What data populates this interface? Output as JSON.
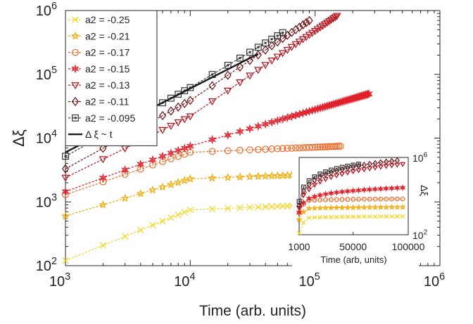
{
  "chart_data": [
    {
      "type": "line",
      "xlabel": "Time (arb. units)",
      "ylabel": "Δξ",
      "xscale": "log",
      "yscale": "log",
      "xlim": [
        1000,
        1000000
      ],
      "ylim": [
        100,
        1000000
      ],
      "x_ticks": [
        {
          "value": 1000,
          "base": "10",
          "exp": "3"
        },
        {
          "value": 10000,
          "base": "10",
          "exp": "4"
        },
        {
          "value": 100000,
          "base": "10",
          "exp": "5"
        },
        {
          "value": 1000000,
          "base": "10",
          "exp": "6"
        }
      ],
      "y_ticks": [
        {
          "value": 100,
          "base": "10",
          "exp": "2"
        },
        {
          "value": 1000,
          "base": "10",
          "exp": "3"
        },
        {
          "value": 10000,
          "base": "10",
          "exp": "4"
        },
        {
          "value": 100000,
          "base": "10",
          "exp": "5"
        },
        {
          "value": 1000000,
          "base": "10",
          "exp": "6"
        }
      ],
      "legend_position": "top-left",
      "series": [
        {
          "name": "a2 = -0.25",
          "color": "#f5d31c",
          "marker": "x",
          "t_end": 200000,
          "values_at_1e3_1e4_1e5": [
            120,
            750,
            900
          ]
        },
        {
          "name": "a2 = -0.21",
          "color": "#f2a800",
          "marker": "star",
          "t_end": 180000,
          "values_at_1e3_1e4_1e5": [
            600,
            2300,
            2700
          ]
        },
        {
          "name": "a2 = -0.17",
          "color": "#ee6a2a",
          "marker": "circle",
          "t_end": 160000,
          "values_at_1e3_1e4_1e5": [
            1300,
            6000,
            7200
          ]
        },
        {
          "name": "a2 = -0.15",
          "color": "#e0202a",
          "marker": "hexagram",
          "t_end": 270000,
          "values_at_1e3_1e4_1e5": [
            1450,
            7500,
            28000
          ]
        },
        {
          "name": "a2 = -0.13",
          "color": "#b3121c",
          "marker": "triangle-down",
          "t_end": 150000,
          "values_at_1e3_1e4_1e5": [
            2400,
            22000,
            480000
          ]
        },
        {
          "name": "a2 = -0.11",
          "color": "#6e0f12",
          "marker": "diamond",
          "t_end": 90000,
          "values_at_1e3_1e4_1e5": [
            3300,
            39000,
            800000
          ]
        },
        {
          "name": "a2 = -0.095",
          "color": "#333333",
          "marker": "square",
          "t_end": 55000,
          "values_at_1e3_1e4_1e5": [
            5200,
            62000,
            900000
          ]
        }
      ],
      "reference_line": {
        "name": "Δ ξ ~ t",
        "color": "#1a1a1a",
        "x": [
          1000,
          35000
        ],
        "y": [
          6000,
          210000
        ]
      }
    },
    {
      "type": "line",
      "position": "inset, lower-right",
      "xlabel": "Time (arb, units)",
      "ylabel": "Δξ",
      "xscale": "linear",
      "yscale": "log",
      "xlim": [
        1000,
        100000
      ],
      "ylim": [
        100,
        1000000
      ],
      "x_ticks": [
        "1000",
        "50000",
        "100000"
      ],
      "y_ticks": [
        {
          "value": 100,
          "base": "10",
          "exp": "2"
        },
        {
          "value": 1000000,
          "base": "10",
          "exp": "6"
        }
      ]
    }
  ]
}
